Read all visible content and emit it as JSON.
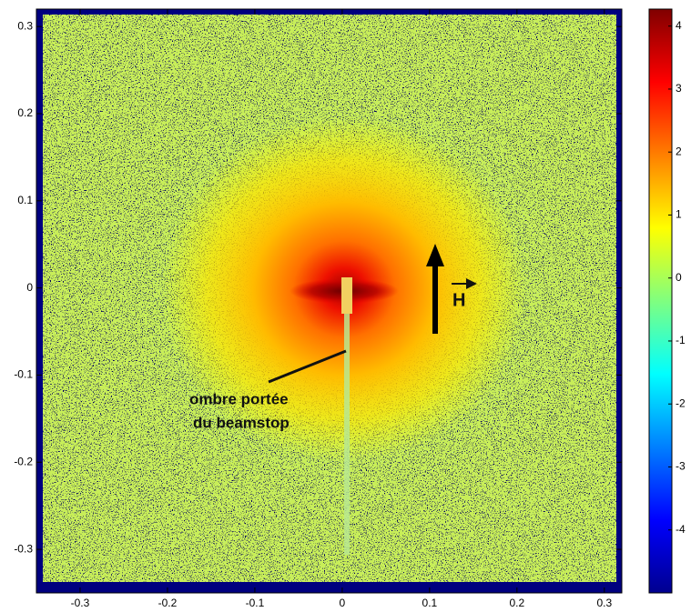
{
  "chart_data": {
    "type": "heatmap",
    "xlim": [
      -0.35,
      0.32
    ],
    "ylim": [
      -0.35,
      0.32
    ],
    "xticks": [
      -0.3,
      -0.2,
      -0.1,
      0,
      0.1,
      0.2,
      0.3
    ],
    "yticks": [
      -0.3,
      -0.2,
      -0.1,
      0,
      0.1,
      0.2,
      0.3
    ],
    "colorbar": {
      "lim": [
        -5,
        4.27
      ],
      "ticks": [
        -4,
        -3,
        -2,
        -1,
        0,
        1,
        2,
        3,
        4
      ],
      "colormap": "jet"
    },
    "annotations": [
      "ombre portée",
      "du beamstop",
      "H"
    ]
  }
}
